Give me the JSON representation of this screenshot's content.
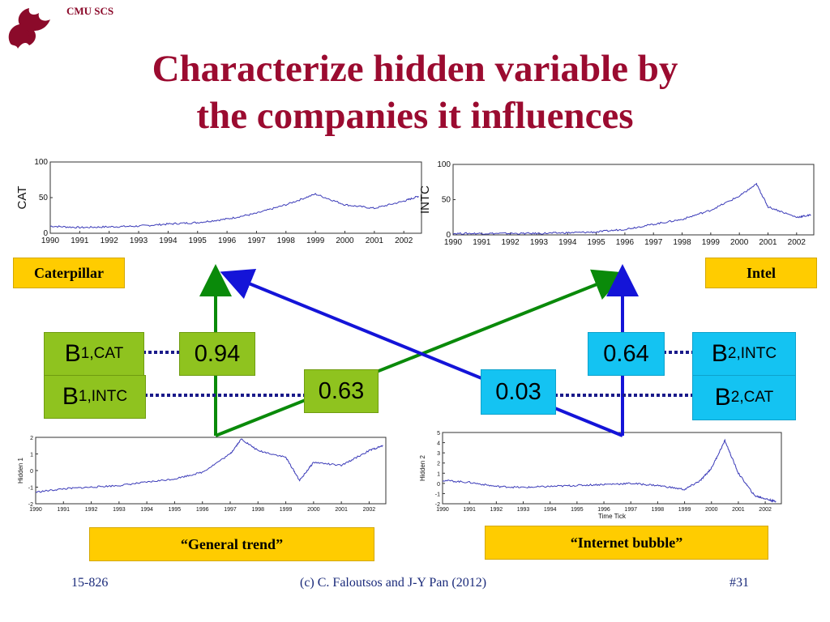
{
  "header": {
    "label": "CMU SCS"
  },
  "title": {
    "line1": "Characterize hidden variable by",
    "line2": "the companies it influences"
  },
  "labels": {
    "caterpillar": "Caterpillar",
    "intel": "Intel",
    "general_trend": "“General trend”",
    "internet_bubble": "“Internet bubble”"
  },
  "coefficients": {
    "b1_cat": {
      "base": "B",
      "sub": "1,CAT"
    },
    "b1_intc": {
      "base": "B",
      "sub": "1,INTC"
    },
    "b2_intc": {
      "base": "B",
      "sub": "2,INTC"
    },
    "b2_cat": {
      "base": "B",
      "sub": "2,CAT"
    },
    "v_094": "0.94",
    "v_063": "0.63",
    "v_064": "0.64",
    "v_003": "0.03"
  },
  "footer": {
    "course": "15-826",
    "copyright": "(c) C. Faloutsos and J-Y Pan (2012)",
    "slide_number": "#31"
  },
  "colors": {
    "title": "#9b0b30",
    "green_arrow": "#0a8a0a",
    "blue_arrow": "#1414d8",
    "yellow": "#ffcc00",
    "green_box": "#8fc31f",
    "cyan_box": "#14c3f2",
    "series_line": "#3a3ab8"
  },
  "chart_data": [
    {
      "type": "line",
      "ylabel": "CAT",
      "ylim": [
        0,
        100
      ],
      "yticks": [
        "0",
        "50",
        "100"
      ],
      "xticks": [
        "1990",
        "1991",
        "1992",
        "1993",
        "1994",
        "1995",
        "1996",
        "1997",
        "1998",
        "1999",
        "2000",
        "2001",
        "2002"
      ],
      "x": [
        1990,
        1991,
        1992,
        1993,
        1994,
        1995,
        1996,
        1997,
        1998,
        1999,
        2000,
        2001,
        2002,
        2002.5
      ],
      "y": [
        10,
        8,
        9,
        10,
        13,
        15,
        20,
        28,
        40,
        55,
        40,
        35,
        45,
        52
      ]
    },
    {
      "type": "line",
      "ylabel": "INTC",
      "ylim": [
        0,
        100
      ],
      "yticks": [
        "0",
        "50",
        "100"
      ],
      "xticks": [
        "1990",
        "1991",
        "1992",
        "1993",
        "1994",
        "1995",
        "1996",
        "1997",
        "1998",
        "1999",
        "2000",
        "2001",
        "2002"
      ],
      "x": [
        1990,
        1991,
        1992,
        1993,
        1994,
        1995,
        1996,
        1997,
        1998,
        1999,
        2000,
        2000.6,
        2001,
        2002,
        2002.5
      ],
      "y": [
        2,
        2,
        2,
        2,
        3,
        4,
        8,
        15,
        22,
        35,
        55,
        72,
        40,
        25,
        28
      ]
    },
    {
      "type": "line",
      "ylabel": "Hidden 1",
      "ylim": [
        -2,
        2
      ],
      "yticks": [
        "-2",
        "-1",
        "0",
        "1",
        "2"
      ],
      "xticks": [
        "1990",
        "1991",
        "1992",
        "1993",
        "1994",
        "1995",
        "1996",
        "1997",
        "1998",
        "1999",
        "2000",
        "2001",
        "2002"
      ],
      "x": [
        1990,
        1991,
        1992,
        1993,
        1994,
        1995,
        1996,
        1997,
        1997.4,
        1998,
        1999,
        1999.5,
        2000,
        2001,
        2002,
        2002.5
      ],
      "y": [
        -1.3,
        -1.1,
        -1.0,
        -0.9,
        -0.7,
        -0.5,
        -0.1,
        1.0,
        1.9,
        1.2,
        0.8,
        -0.6,
        0.5,
        0.3,
        1.2,
        1.5
      ]
    },
    {
      "type": "line",
      "ylabel": "Hidden 2",
      "xlabel": "Time Tick",
      "ylim": [
        -2,
        5
      ],
      "yticks": [
        "-2",
        "-1",
        "0",
        "1",
        "2",
        "3",
        "4",
        "5"
      ],
      "xticks": [
        "1990",
        "1991",
        "1992",
        "1993",
        "1994",
        "1995",
        "1996",
        "1997",
        "1998",
        "1999",
        "2000",
        "2001",
        "2002"
      ],
      "x": [
        1990,
        1991,
        1992,
        1993,
        1994,
        1995,
        1996,
        1997,
        1998,
        1999,
        1999.6,
        2000,
        2000.5,
        2001,
        2001.6,
        2002,
        2002.4
      ],
      "y": [
        0.3,
        0.1,
        -0.3,
        -0.4,
        -0.3,
        -0.2,
        -0.1,
        0.0,
        -0.2,
        -0.6,
        0.3,
        1.5,
        4.2,
        1.0,
        -1.2,
        -1.5,
        -1.8
      ]
    }
  ]
}
